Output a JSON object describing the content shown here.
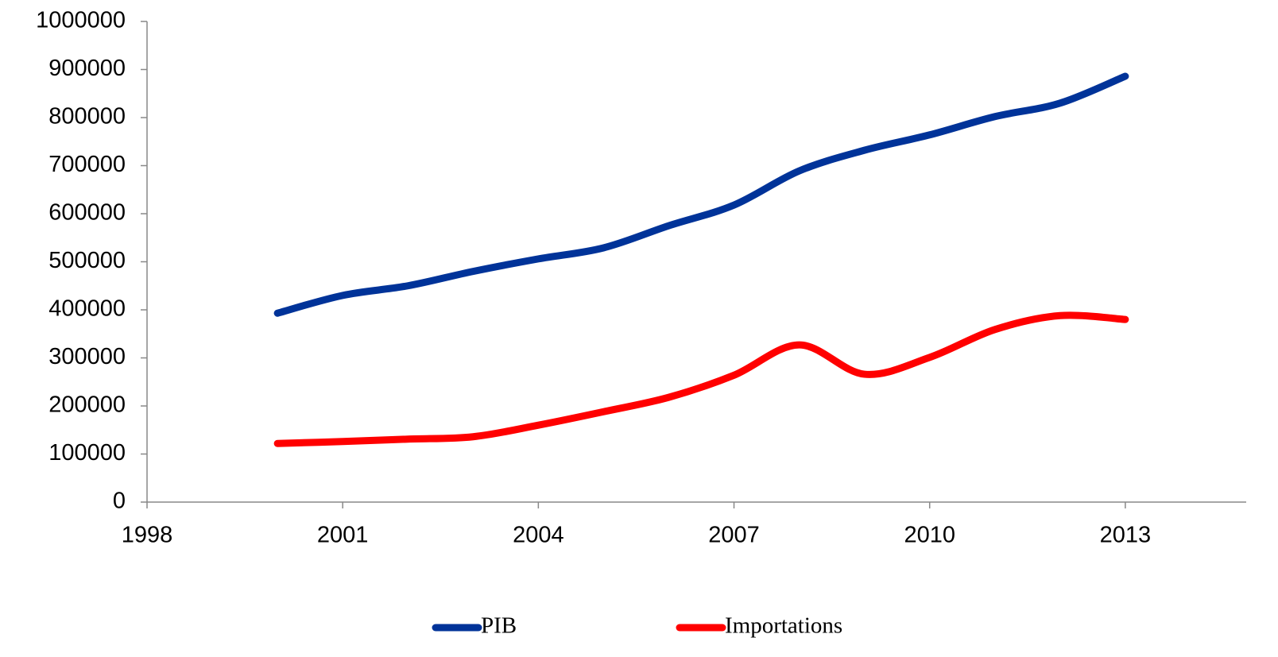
{
  "chart_data": {
    "type": "line",
    "x": [
      2000,
      2001,
      2002,
      2003,
      2004,
      2005,
      2006,
      2007,
      2008,
      2009,
      2010,
      2011,
      2012,
      2013
    ],
    "series": [
      {
        "name": "PIB",
        "color": "#003399",
        "values": [
          393000,
          430000,
          450000,
          480000,
          506000,
          529000,
          575000,
          618000,
          689000,
          732000,
          764000,
          802000,
          830000,
          886000
        ]
      },
      {
        "name": "Importations",
        "color": "#ff0000",
        "values": [
          122000,
          126000,
          131000,
          136000,
          160000,
          188000,
          218000,
          264000,
          327000,
          266000,
          301000,
          359000,
          388000,
          380000
        ]
      }
    ],
    "xlim": [
      1998,
      2015
    ],
    "xticks": [
      1998,
      2001,
      2004,
      2007,
      2010,
      2013
    ],
    "ylim": [
      0,
      1000000
    ],
    "yticks": [
      0,
      100000,
      200000,
      300000,
      400000,
      500000,
      600000,
      700000,
      800000,
      900000,
      1000000
    ],
    "grid": false,
    "legend": "bottom"
  }
}
